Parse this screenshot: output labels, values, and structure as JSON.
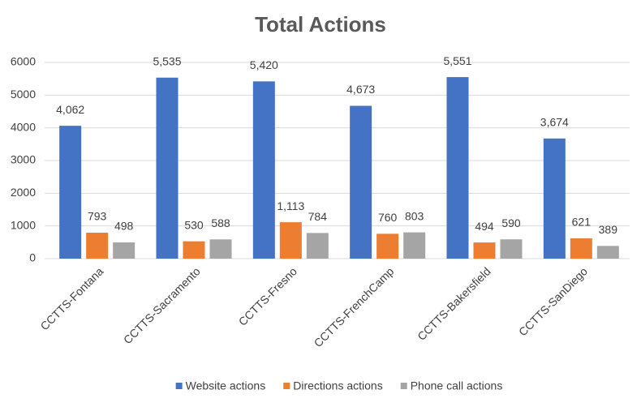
{
  "chart_data": {
    "type": "bar",
    "title": "Total Actions",
    "categories": [
      "CCTTS-Fontana",
      "CCTTS-Sacramento",
      "CCTTS-Fresno",
      "CCTTS-FrenchCamp",
      "CCTTS-Bakersfield",
      "CCTTS-SanDiego"
    ],
    "series": [
      {
        "name": "Website actions",
        "color": "#4472c4",
        "values": [
          4062,
          5535,
          5420,
          4673,
          5551,
          3674
        ],
        "value_labels": [
          "4,062",
          "5,535",
          "5,420",
          "4,673",
          "5,551",
          "3,674"
        ]
      },
      {
        "name": "Directions actions",
        "color": "#ed7d31",
        "values": [
          793,
          530,
          1113,
          760,
          494,
          621
        ],
        "value_labels": [
          "793",
          "530",
          "1,113",
          "760",
          "494",
          "621"
        ]
      },
      {
        "name": "Phone call actions",
        "color": "#a5a5a5",
        "values": [
          498,
          588,
          784,
          803,
          590,
          389
        ],
        "value_labels": [
          "498",
          "588",
          "784",
          "803",
          "590",
          "389"
        ]
      }
    ],
    "ylim": [
      0,
      6000
    ],
    "yticks": [
      0,
      1000,
      2000,
      3000,
      4000,
      5000,
      6000
    ],
    "grid": true,
    "legend": "bottom"
  }
}
